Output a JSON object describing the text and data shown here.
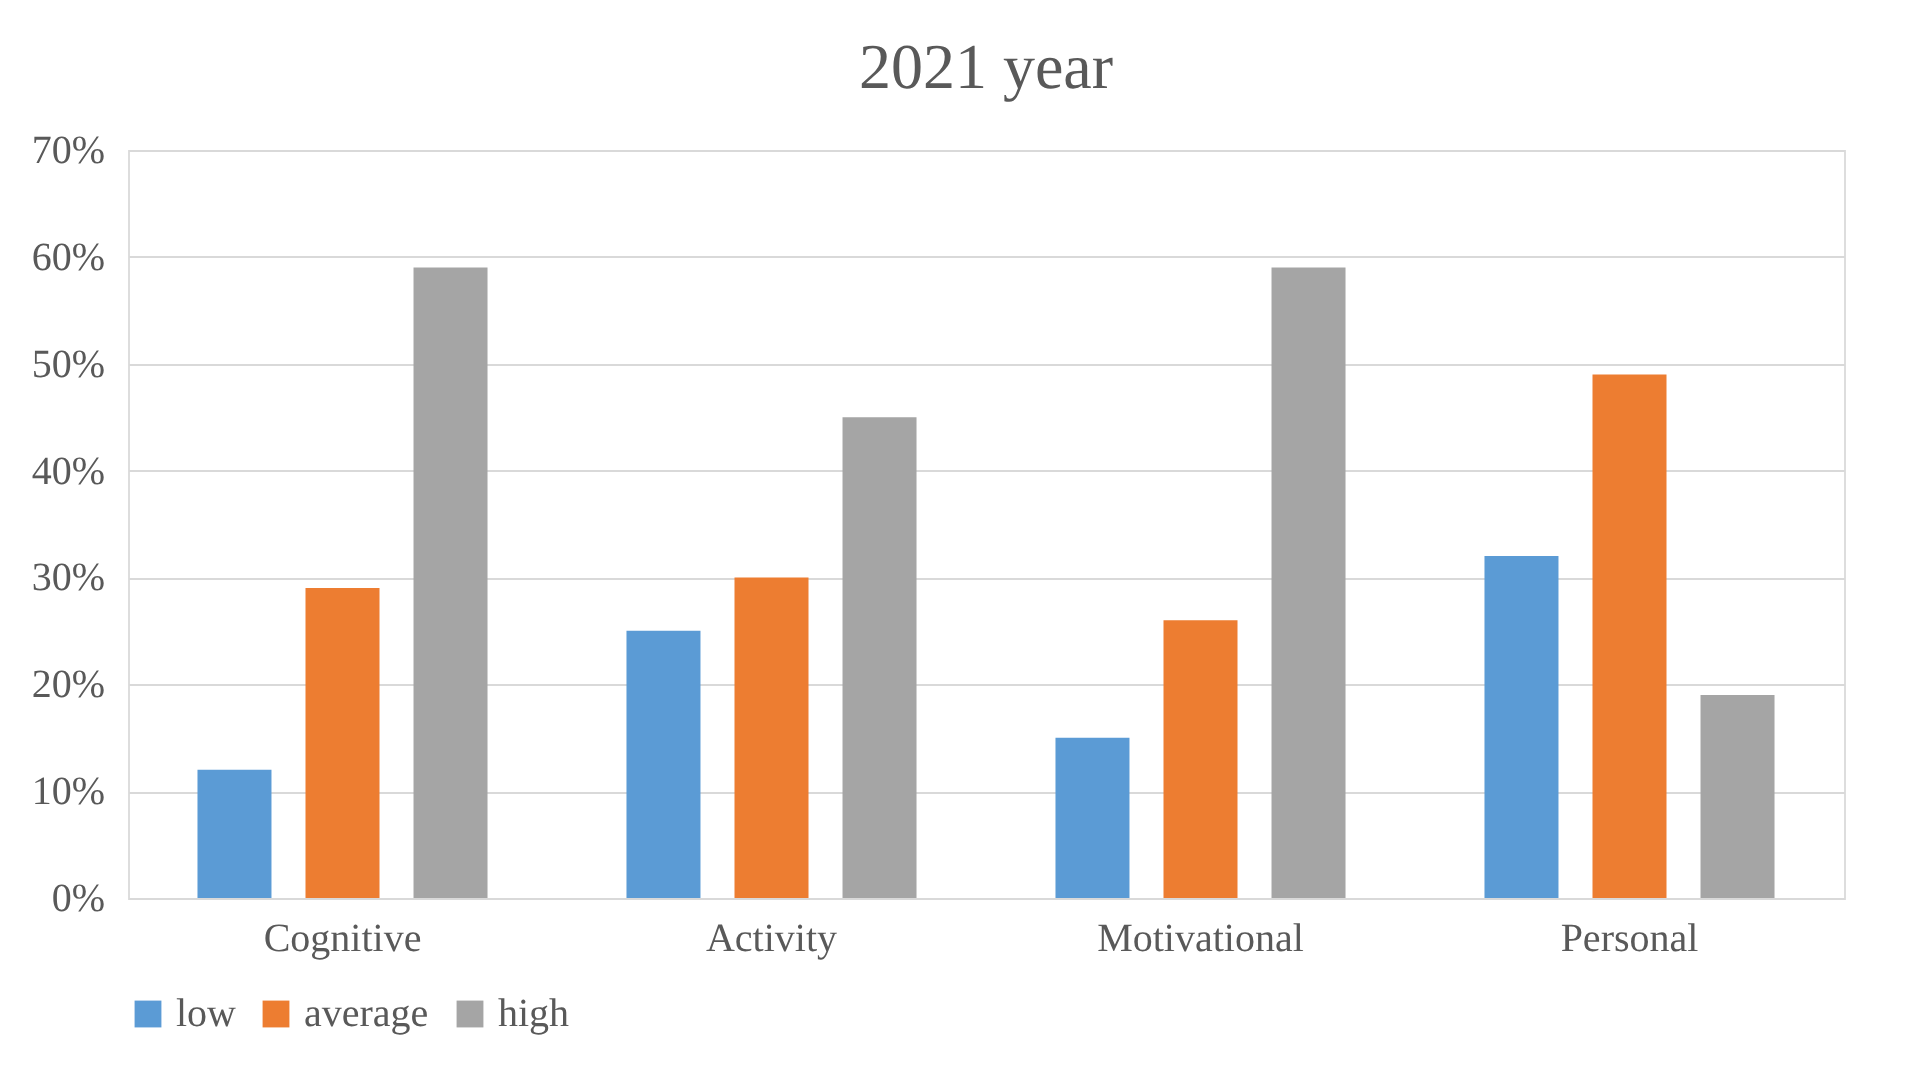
{
  "chart_data": {
    "type": "bar",
    "title": "2021 year",
    "categories": [
      "Cognitive",
      "Activity",
      "Motivational",
      "Personal"
    ],
    "series": [
      {
        "name": "low",
        "color": "#5b9bd5",
        "values": [
          12,
          25,
          15,
          32
        ]
      },
      {
        "name": "average",
        "color": "#ed7d31",
        "values": [
          29,
          30,
          26,
          49
        ]
      },
      {
        "name": "high",
        "color": "#a5a5a5",
        "values": [
          59,
          45,
          59,
          19
        ]
      }
    ],
    "ylim": [
      0,
      70
    ],
    "yticks": [
      {
        "value": 0,
        "label": "0%"
      },
      {
        "value": 10,
        "label": "10%"
      },
      {
        "value": 20,
        "label": "20%"
      },
      {
        "value": 30,
        "label": "30%"
      },
      {
        "value": 40,
        "label": "40%"
      },
      {
        "value": 50,
        "label": "50%"
      },
      {
        "value": 60,
        "label": "60%"
      },
      {
        "value": 70,
        "label": "70%"
      }
    ],
    "grid": "y",
    "legend": "bottom"
  }
}
